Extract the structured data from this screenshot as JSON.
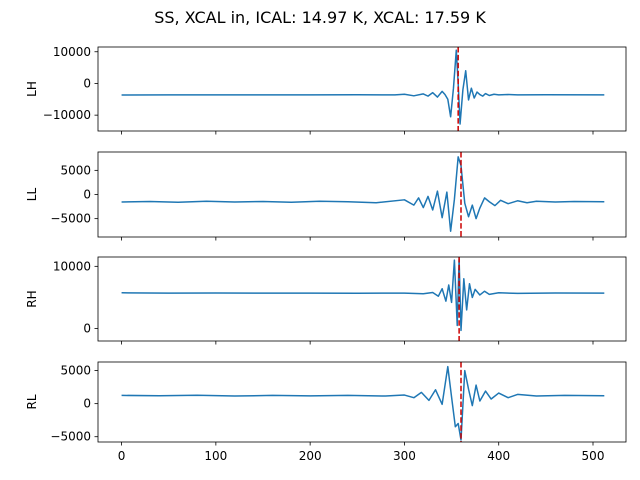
{
  "suptitle": "SS, XCAL in, ICAL: 14.97 K, XCAL: 17.59 K",
  "chart_data": [
    {
      "type": "line",
      "ylabel": "LH",
      "xlim": [
        -25,
        535
      ],
      "ylim": [
        -15000,
        11500
      ],
      "yticks": [
        -10000,
        0,
        10000
      ],
      "ytick_labels": [
        "−10000",
        "0",
        "10000"
      ],
      "baseline": -3600,
      "vline_x": 357,
      "color": "#1f77b4",
      "vline_color": "#cc0000",
      "x": [
        0,
        50,
        100,
        150,
        200,
        250,
        290,
        300,
        310,
        320,
        325,
        330,
        335,
        340,
        343,
        346,
        349,
        352,
        355,
        357,
        359,
        362,
        365,
        368,
        371,
        374,
        377,
        380,
        383,
        386,
        390,
        395,
        400,
        410,
        420,
        450,
        512
      ],
      "y": [
        -3650,
        -3600,
        -3620,
        -3590,
        -3600,
        -3580,
        -3600,
        -3400,
        -3900,
        -3300,
        -4000,
        -2900,
        -4300,
        -2500,
        -3500,
        -5000,
        -10500,
        -1500,
        10500,
        0,
        -12800,
        -2000,
        4000,
        -5200,
        -1500,
        -4600,
        -2700,
        -3500,
        -4000,
        -3200,
        -3800,
        -3400,
        -3600,
        -3500,
        -3600,
        -3580,
        -3620
      ]
    },
    {
      "type": "line",
      "ylabel": "LL",
      "xlim": [
        -25,
        535
      ],
      "ylim": [
        -8800,
        8800
      ],
      "yticks": [
        -5000,
        0,
        5000
      ],
      "ytick_labels": [
        "−5000",
        "0",
        "5000"
      ],
      "baseline": -1500,
      "vline_x": 360,
      "color": "#1f77b4",
      "vline_color": "#cc0000",
      "x": [
        0,
        30,
        60,
        90,
        120,
        150,
        180,
        210,
        240,
        270,
        300,
        310,
        315,
        320,
        325,
        330,
        335,
        340,
        345,
        349,
        353,
        357,
        360,
        364,
        368,
        372,
        376,
        380,
        385,
        390,
        396,
        402,
        410,
        420,
        430,
        440,
        460,
        480,
        512
      ],
      "y": [
        -1550,
        -1450,
        -1600,
        -1400,
        -1550,
        -1450,
        -1600,
        -1400,
        -1500,
        -1700,
        -1100,
        -2200,
        -700,
        -2700,
        -400,
        -3200,
        700,
        -4800,
        500,
        -7600,
        -1000,
        7800,
        6000,
        -1800,
        -4600,
        -2200,
        -5000,
        -2800,
        -700,
        -1500,
        -2300,
        -1200,
        -1900,
        -1300,
        -1700,
        -1400,
        -1550,
        -1450,
        -1500
      ]
    },
    {
      "type": "line",
      "ylabel": "RH",
      "xlim": [
        -25,
        535
      ],
      "ylim": [
        -2000,
        11500
      ],
      "yticks": [
        0,
        10000
      ],
      "ytick_labels": [
        "0",
        "10000"
      ],
      "baseline": 5700,
      "vline_x": 358,
      "color": "#1f77b4",
      "vline_color": "#cc0000",
      "x": [
        0,
        50,
        100,
        150,
        200,
        250,
        300,
        320,
        330,
        336,
        340,
        344,
        347,
        350,
        353,
        356,
        358,
        360,
        363,
        366,
        369,
        372,
        375,
        380,
        385,
        390,
        400,
        420,
        460,
        512
      ],
      "y": [
        5750,
        5700,
        5720,
        5690,
        5700,
        5680,
        5700,
        5600,
        5800,
        5200,
        6400,
        4400,
        7000,
        4200,
        11000,
        500,
        11200,
        -300,
        8000,
        3000,
        7200,
        5000,
        6300,
        5400,
        6000,
        5500,
        5750,
        5650,
        5720,
        5700
      ]
    },
    {
      "type": "line",
      "ylabel": "RL",
      "xlim": [
        -25,
        535
      ],
      "ylim": [
        -5800,
        6300
      ],
      "yticks": [
        -5000,
        0,
        5000
      ],
      "ytick_labels": [
        "−5000",
        "0",
        "5000"
      ],
      "baseline": 1200,
      "vline_x": 360,
      "color": "#1f77b4",
      "vline_color": "#cc0000",
      "x": [
        0,
        40,
        80,
        120,
        160,
        200,
        240,
        280,
        300,
        310,
        318,
        326,
        333,
        340,
        346,
        350,
        354,
        357,
        360,
        364,
        368,
        372,
        376,
        380,
        386,
        392,
        400,
        410,
        420,
        440,
        470,
        512
      ],
      "y": [
        1250,
        1200,
        1280,
        1150,
        1250,
        1180,
        1250,
        1150,
        1300,
        900,
        1700,
        500,
        2100,
        -100,
        5600,
        1000,
        -3500,
        -3000,
        -5500,
        5000,
        2200,
        -300,
        2800,
        400,
        1900,
        700,
        1600,
        900,
        1400,
        1150,
        1250,
        1200
      ]
    }
  ],
  "shared_xticks": [
    0,
    100,
    200,
    300,
    400,
    500
  ],
  "shared_xtick_labels": [
    "0",
    "100",
    "200",
    "300",
    "400",
    "500"
  ]
}
